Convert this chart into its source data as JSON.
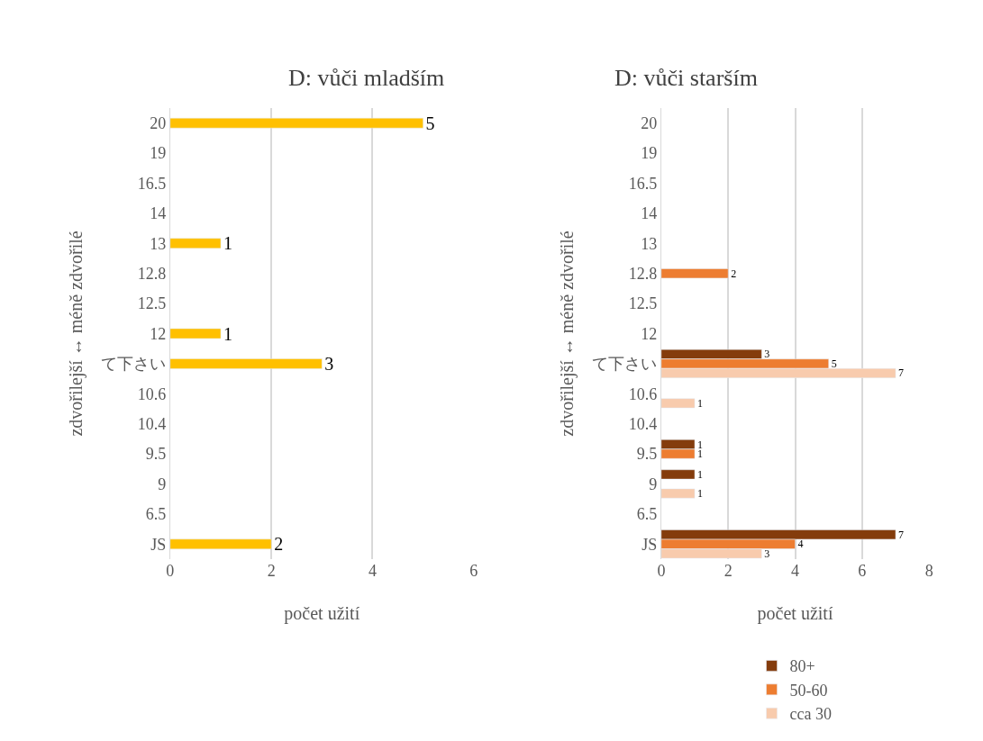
{
  "chart_data": [
    {
      "type": "bar",
      "orientation": "horizontal",
      "title": "D: vůči mladším",
      "xlabel": "počet užití",
      "ylabel": "zdvořilejší ↔ méně zdvořilé",
      "categories": [
        "20",
        "19",
        "16.5",
        "14",
        "13",
        "12.8",
        "12.5",
        "12",
        "て下さい",
        "10.6",
        "10.4",
        "9.5",
        "9",
        "6.5",
        "JS"
      ],
      "series": [
        {
          "color": "#ffc000",
          "values": [
            5,
            null,
            null,
            null,
            1,
            null,
            null,
            1,
            3,
            null,
            null,
            null,
            null,
            null,
            2
          ]
        }
      ],
      "xlim": [
        0,
        6
      ],
      "xticks": [
        0,
        2,
        4,
        6
      ],
      "grid": "x",
      "data_labels": true,
      "legend": false
    },
    {
      "type": "bar",
      "orientation": "horizontal",
      "title": "D: vůči starším",
      "xlabel": "počet užití",
      "ylabel": "zdvořilejší ↔ méně zdvořilé",
      "categories": [
        "20",
        "19",
        "16.5",
        "14",
        "13",
        "12.8",
        "12.5",
        "12",
        "て下さい",
        "10.6",
        "10.4",
        "9.5",
        "9",
        "6.5",
        "JS"
      ],
      "series": [
        {
          "name": "80+",
          "color": "#843c0c",
          "values": [
            null,
            null,
            null,
            null,
            null,
            null,
            null,
            null,
            3,
            null,
            null,
            1,
            1,
            null,
            7
          ]
        },
        {
          "name": "50-60",
          "color": "#ed7d31",
          "values": [
            null,
            null,
            null,
            null,
            null,
            2,
            null,
            null,
            5,
            null,
            null,
            1,
            null,
            null,
            4
          ]
        },
        {
          "name": "cca 30",
          "color": "#f8cbad",
          "values": [
            null,
            null,
            null,
            null,
            null,
            null,
            null,
            null,
            7,
            1,
            null,
            null,
            1,
            null,
            3
          ]
        }
      ],
      "xlim": [
        0,
        8
      ],
      "xticks": [
        0,
        2,
        4,
        6,
        8
      ],
      "grid": "x",
      "data_labels": true,
      "legend": "bottom"
    }
  ]
}
